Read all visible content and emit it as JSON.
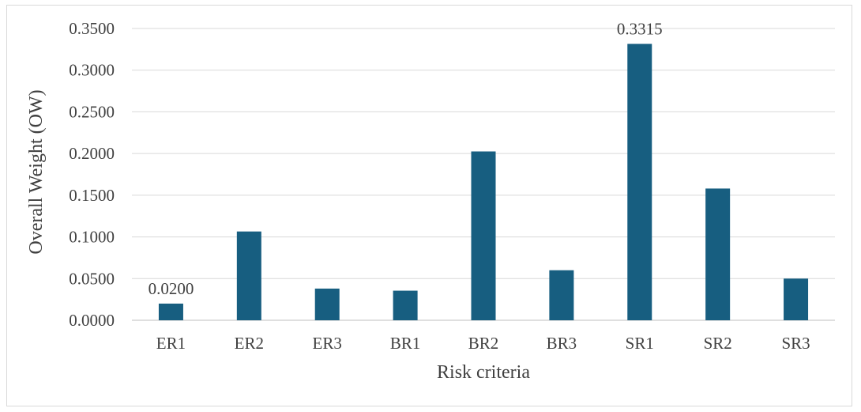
{
  "chart_data": {
    "type": "bar",
    "title": "",
    "xlabel": "Risk criteria",
    "ylabel": "Overall Weight (OW)",
    "categories": [
      "ER1",
      "ER2",
      "ER3",
      "BR1",
      "BR2",
      "BR3",
      "SR1",
      "SR2",
      "SR3"
    ],
    "values": [
      0.02,
      0.1065,
      0.038,
      0.0355,
      0.2025,
      0.06,
      0.3315,
      0.158,
      0.05
    ],
    "data_labels": [
      {
        "category": "ER1",
        "text": "0.0200"
      },
      {
        "category": "SR1",
        "text": "0.3315"
      }
    ],
    "ylim": [
      0,
      0.35
    ],
    "yticks": [
      "0.0000",
      "0.0500",
      "0.1000",
      "0.1500",
      "0.2000",
      "0.2500",
      "0.3000",
      "0.3500"
    ],
    "grid": true,
    "legend": "none",
    "bar_color": "#175e80"
  }
}
